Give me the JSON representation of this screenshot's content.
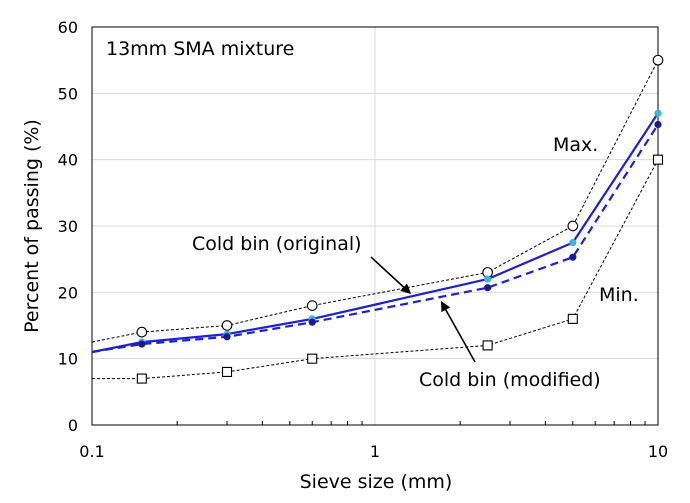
{
  "chart_data": {
    "type": "line",
    "title": "13mm SMA mixture",
    "xlabel": "Sieve size (mm)",
    "ylabel": "Percent of passing (%)",
    "xscale": "log",
    "xlim": [
      0.1,
      10
    ],
    "ylim": [
      0,
      60
    ],
    "xticks": [
      0.1,
      1,
      10
    ],
    "xtick_labels": [
      "0.1",
      "1",
      "10"
    ],
    "yticks": [
      0,
      10,
      20,
      30,
      40,
      50,
      60
    ],
    "ytick_labels": [
      "0",
      "10",
      "20",
      "30",
      "40",
      "50",
      "60"
    ],
    "grid": true,
    "series": [
      {
        "name": "Max.",
        "style": "dotted",
        "color": "#000000",
        "marker": "circle",
        "points": [
          [
            0.1,
            12.5
          ],
          [
            0.15,
            14
          ],
          [
            0.3,
            15
          ],
          [
            0.6,
            18
          ],
          [
            2.5,
            23
          ],
          [
            5,
            30
          ],
          [
            10,
            55
          ]
        ]
      },
      {
        "name": "Min.",
        "style": "dotted",
        "color": "#000000",
        "marker": "square",
        "points": [
          [
            0.1,
            7
          ],
          [
            0.15,
            7
          ],
          [
            0.3,
            8
          ],
          [
            0.6,
            10
          ],
          [
            2.5,
            12
          ],
          [
            5,
            16
          ],
          [
            10,
            40
          ]
        ]
      },
      {
        "name": "Cold bin (original)",
        "style": "solid",
        "color": "#1f1fd6",
        "marker_color": "#3fb3d8",
        "marker": "dot",
        "points": [
          [
            0.1,
            11
          ],
          [
            0.15,
            12.5
          ],
          [
            0.3,
            13.7
          ],
          [
            0.6,
            16
          ],
          [
            2.5,
            22
          ],
          [
            5,
            27.5
          ],
          [
            10,
            47
          ]
        ]
      },
      {
        "name": "Cold bin (modified)",
        "style": "dashed",
        "color": "#1f1fd6",
        "marker_color": "#1a1a8c",
        "marker": "dot",
        "points": [
          [
            0.1,
            11
          ],
          [
            0.15,
            12.2
          ],
          [
            0.3,
            13.3
          ],
          [
            0.6,
            15.5
          ],
          [
            2.5,
            20.7
          ],
          [
            5,
            25.3
          ],
          [
            10,
            45.3
          ]
        ]
      }
    ],
    "annotations": [
      {
        "text": "Max."
      },
      {
        "text": "Min."
      },
      {
        "text": "Cold bin (original)"
      },
      {
        "text": "Cold bin (modified)"
      }
    ]
  }
}
